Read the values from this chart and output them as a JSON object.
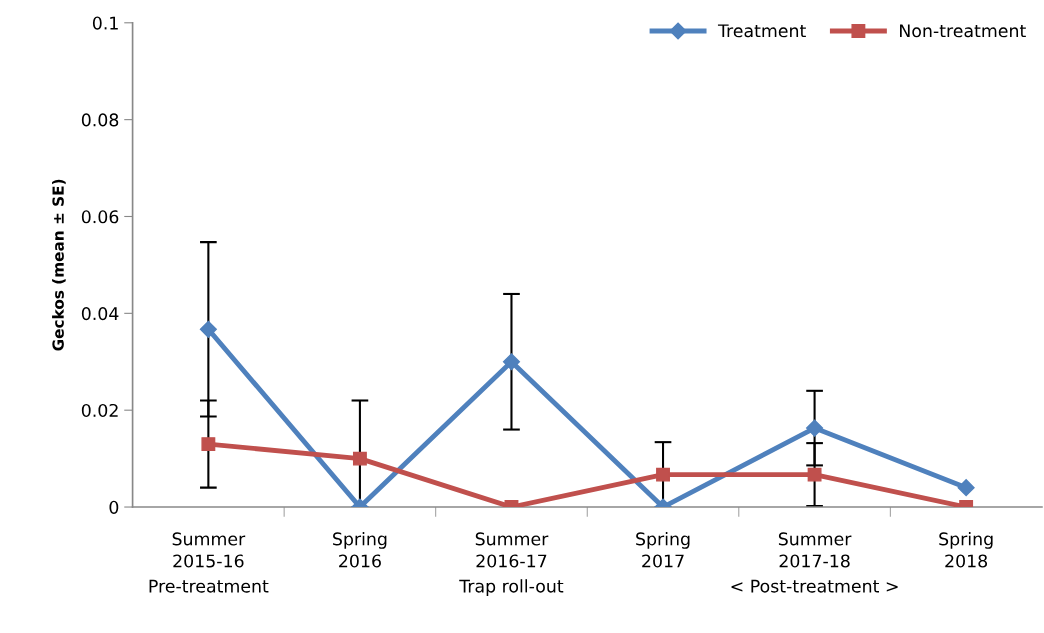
{
  "chart_data": {
    "type": "line",
    "ylabel": "Geckos (mean ± SE)",
    "categories": [
      "Summer\n2015-16",
      "Spring\n2016",
      "Summer\n2016-17",
      "Spring\n2017",
      "Summer\n2017-18",
      "Spring\n2018"
    ],
    "series": [
      {
        "name": "Treatment",
        "color": "#4f81bd",
        "marker": "diamond",
        "values": [
          0.0367,
          0,
          0.03,
          0,
          0.0163,
          0.004
        ],
        "errors": [
          0.018,
          null,
          0.014,
          null,
          0.0077,
          null
        ]
      },
      {
        "name": "Non-treatment",
        "color": "#c0504d",
        "marker": "square",
        "values": [
          0.013,
          0.01,
          0,
          0.0067,
          0.0067,
          0
        ],
        "errors": [
          0.009,
          [
            0,
            0.022
          ],
          null,
          0.0067,
          0.0065,
          null
        ]
      }
    ],
    "ylim": [
      0,
      0.1
    ],
    "yticks": [
      0,
      0.02,
      0.04,
      0.06,
      0.08,
      0.1
    ],
    "grid": false,
    "legend": "top right",
    "line_style": "solid",
    "annotations": [
      "Pre-treatment",
      "Trap roll-out",
      "< Post-treatment >"
    ]
  }
}
